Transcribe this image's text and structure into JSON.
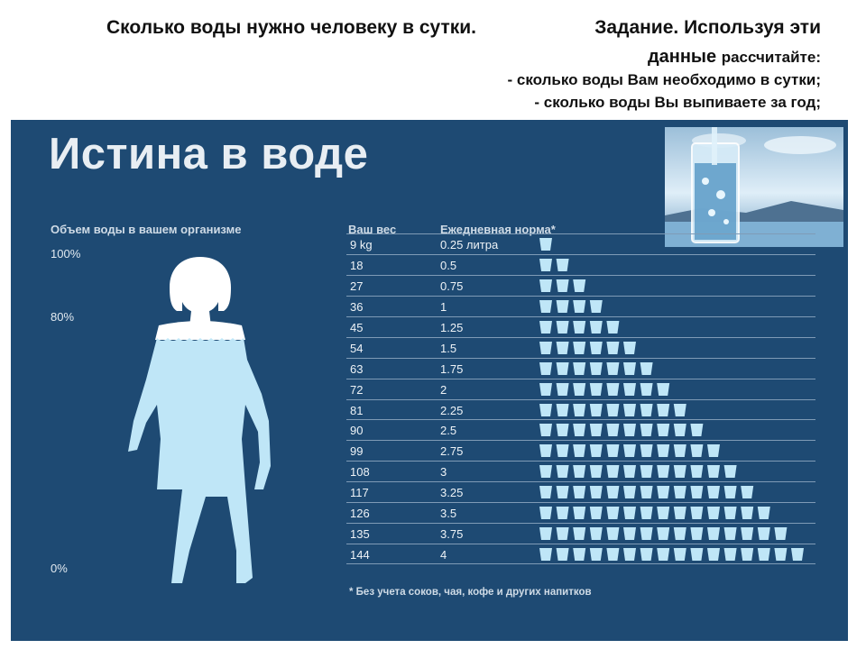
{
  "header": {
    "line1_left": "Сколько воды нужно человеку в сутки.",
    "line1_right": "Задание. Используя эти",
    "line2_main": "данные",
    "line2_small": "рассчитайте:",
    "line3": "- сколько воды Вам необходимо в сутки;",
    "line4": "- сколько воды Вы выпиваете за год;"
  },
  "infographic": {
    "title": "Истина в воде",
    "body_label": "Объем воды в вашем организме",
    "pct_100": "100%",
    "pct_80": "80%",
    "pct_0": "0%",
    "col_weight": "Ваш вес",
    "col_norm": "Ежедневная норма*",
    "rows": [
      {
        "weight": "9 kg",
        "norm": "0.25 литра",
        "cups": 1
      },
      {
        "weight": "18",
        "norm": "0.5",
        "cups": 2
      },
      {
        "weight": "27",
        "norm": "0.75",
        "cups": 3
      },
      {
        "weight": "36",
        "norm": "1",
        "cups": 4
      },
      {
        "weight": "45",
        "norm": "1.25",
        "cups": 5
      },
      {
        "weight": "54",
        "norm": "1.5",
        "cups": 6
      },
      {
        "weight": "63",
        "norm": "1.75",
        "cups": 7
      },
      {
        "weight": "72",
        "norm": "2",
        "cups": 8
      },
      {
        "weight": "81",
        "norm": "2.25",
        "cups": 9
      },
      {
        "weight": "90",
        "norm": "2.5",
        "cups": 10
      },
      {
        "weight": "99",
        "norm": "2.75",
        "cups": 11
      },
      {
        "weight": "108",
        "norm": "3",
        "cups": 12
      },
      {
        "weight": "117",
        "norm": "3.25",
        "cups": 13
      },
      {
        "weight": "126",
        "norm": "3.5",
        "cups": 14
      },
      {
        "weight": "135",
        "norm": "3.75",
        "cups": 15
      },
      {
        "weight": "144",
        "norm": "4",
        "cups": 16
      }
    ],
    "footnote": "* Без учета соков, чая, кофе и других напитков"
  },
  "colors": {
    "panel": "#1e4a73",
    "cup": "#bfe6f7",
    "water": "#a8dcf2"
  },
  "icons": [
    "glass-of-water-photo",
    "woman-silhouette",
    "cup-icon"
  ]
}
